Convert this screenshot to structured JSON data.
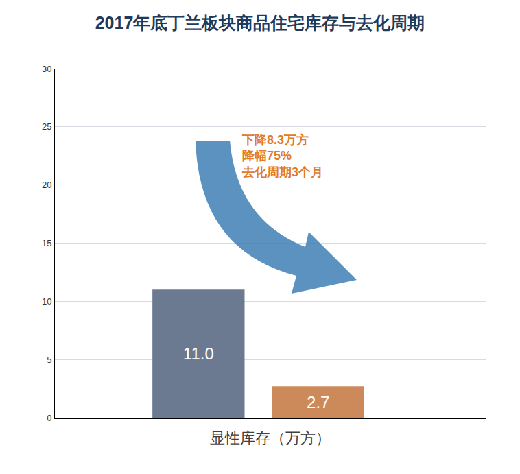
{
  "chart_data": {
    "type": "bar",
    "title": "2017年底丁兰板块商品住宅库存与去化周期",
    "x_label": "显性库存（万方）",
    "categories": [
      null,
      null
    ],
    "values": [
      11.0,
      2.7
    ],
    "value_labels": [
      "11.0",
      "2.7"
    ],
    "colors": [
      "#6b7a90",
      "#cc8a5a"
    ],
    "ylim": [
      0,
      30
    ],
    "yticks": [
      0,
      5,
      10,
      15,
      20,
      25,
      30
    ],
    "grid": true,
    "data_labels": true,
    "annotations": [
      "下降8.3万方",
      "降幅75%",
      "去化周期3个月"
    ]
  }
}
